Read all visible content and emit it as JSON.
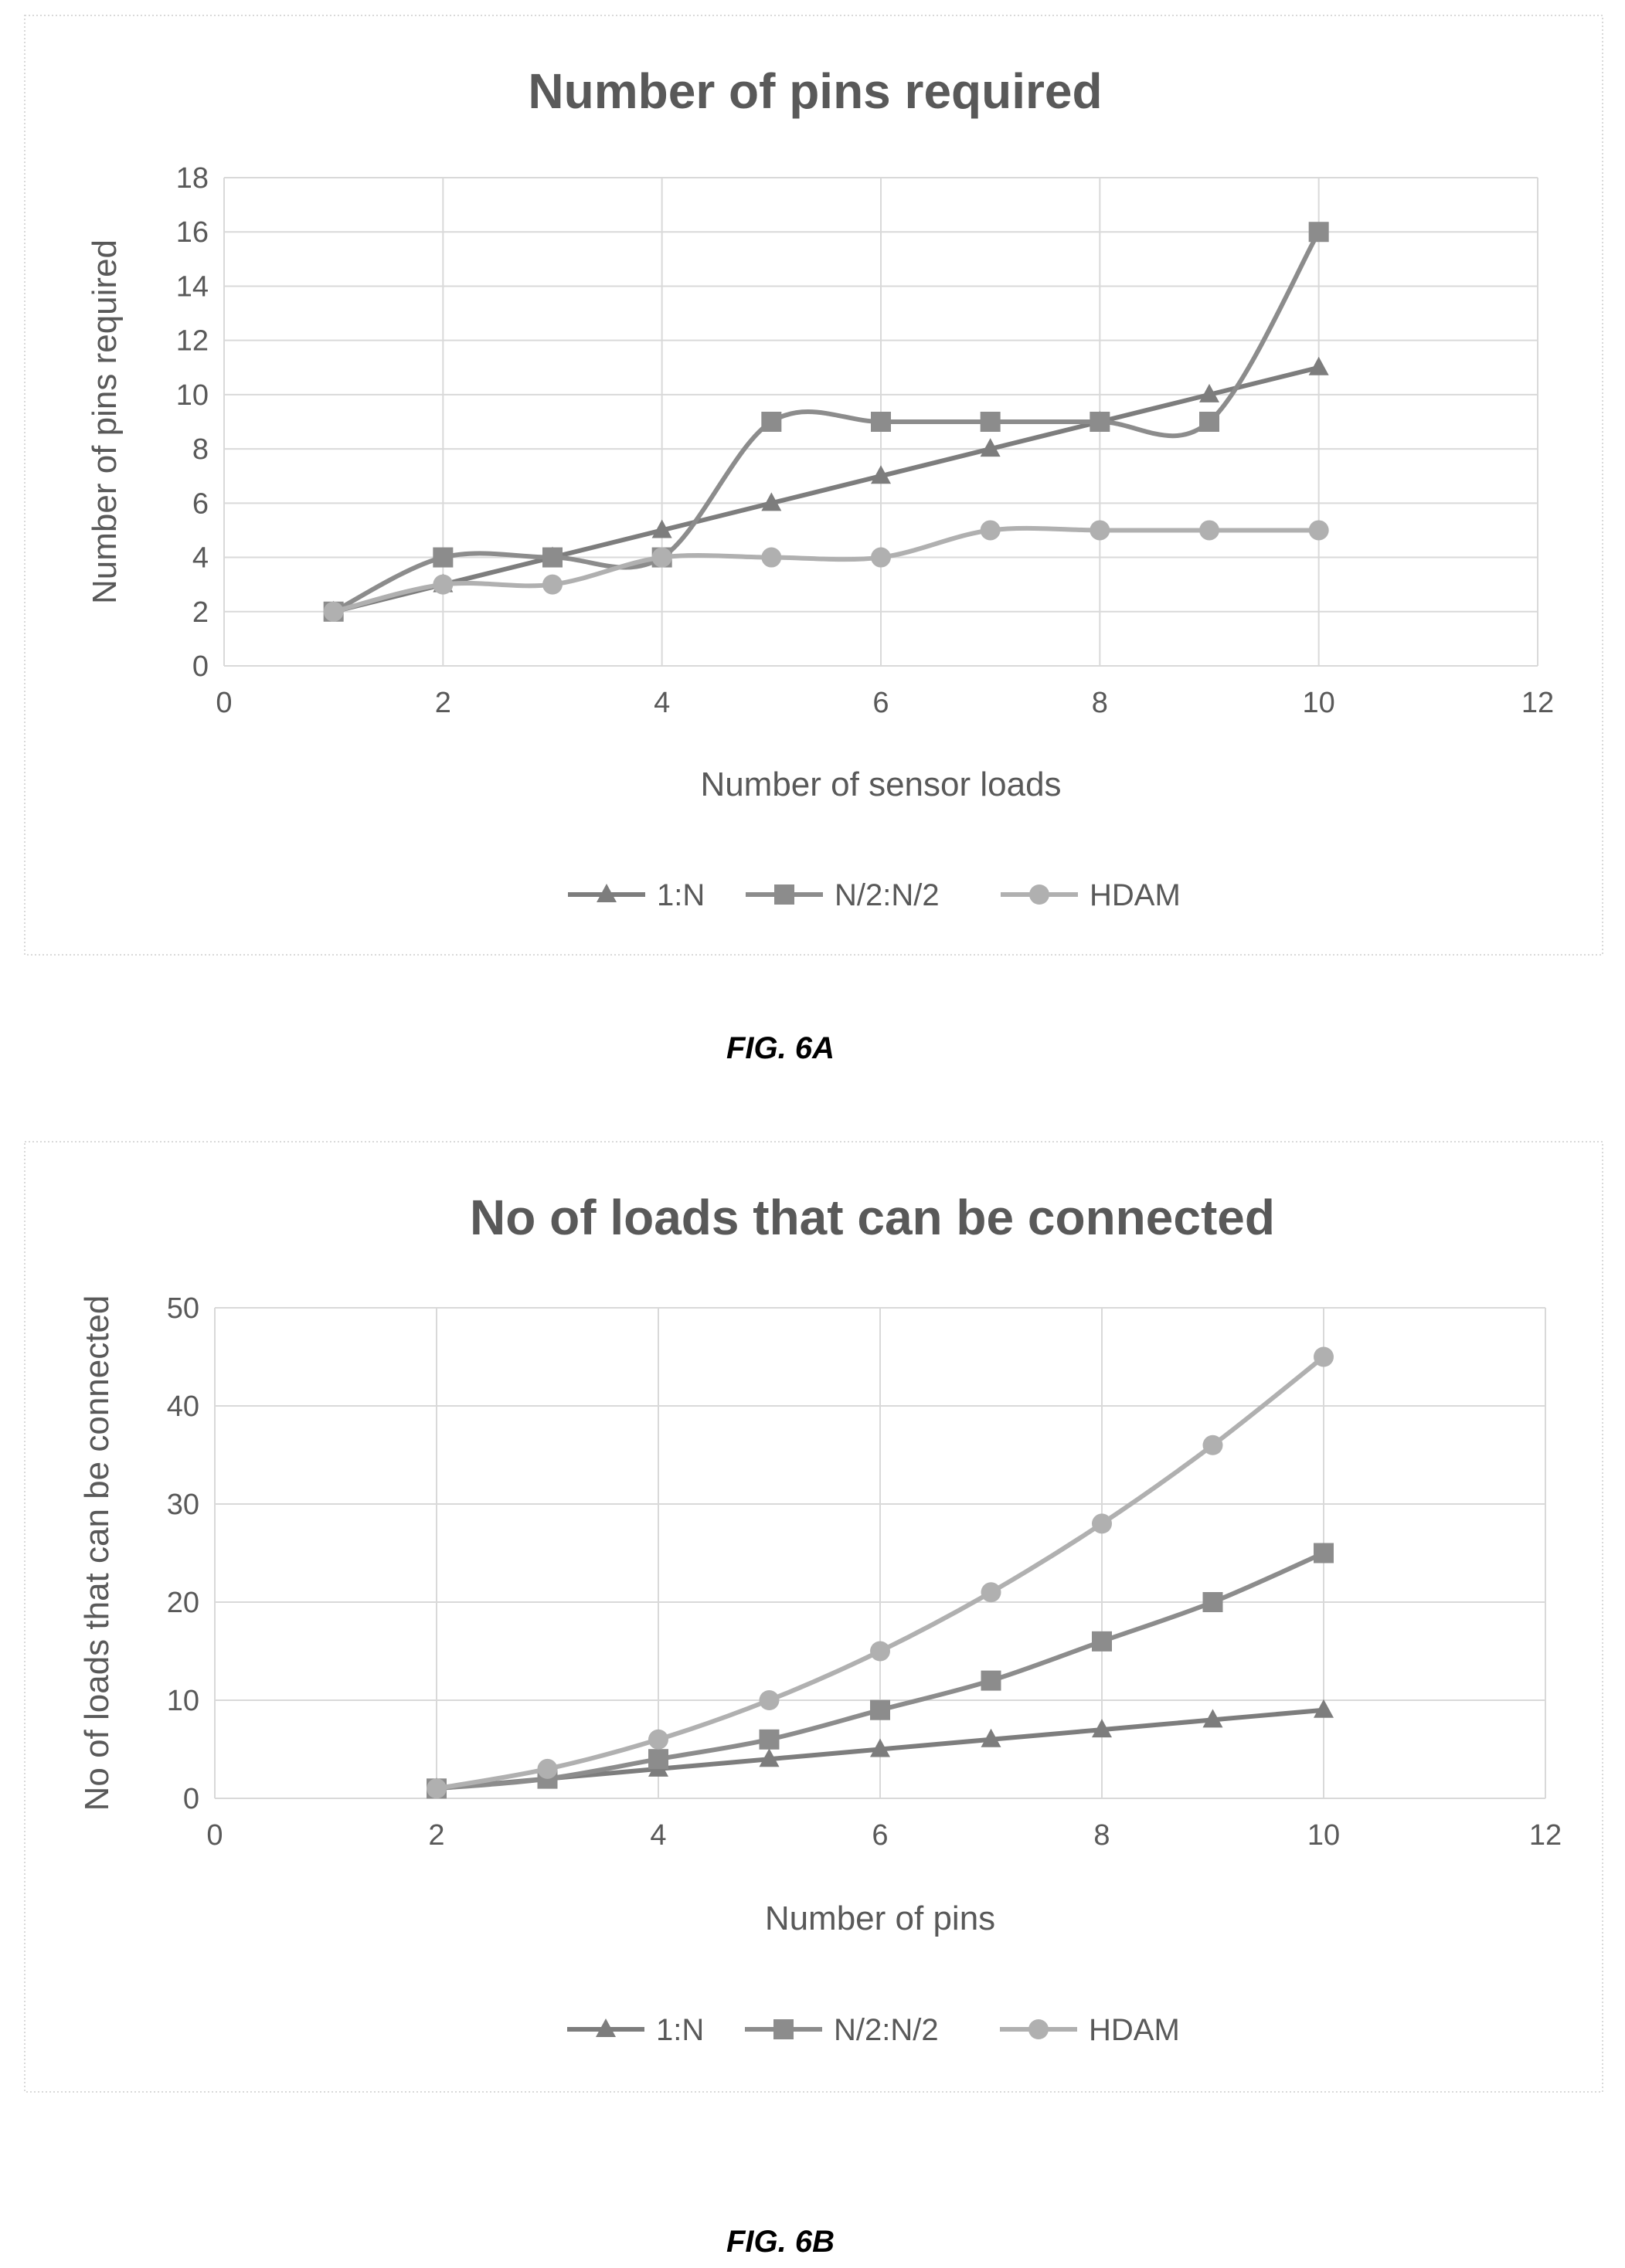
{
  "figures": [
    {
      "caption": "FIG. 6A",
      "chart_data": {
        "type": "line",
        "title": "Number of pins required",
        "xlabel": "Number of sensor loads",
        "ylabel": "Number of pins required",
        "xlim": [
          0,
          12
        ],
        "ylim": [
          0,
          18
        ],
        "xticks": [
          0,
          2,
          4,
          6,
          8,
          10,
          12
        ],
        "yticks": [
          0,
          2,
          4,
          6,
          8,
          10,
          12,
          14,
          16,
          18
        ],
        "grid": true,
        "smooth": true,
        "legend_position": "bottom",
        "series": [
          {
            "name": "1:N",
            "marker": "triangle",
            "color": "#7d7d7d",
            "x": [
              1,
              2,
              3,
              4,
              5,
              6,
              7,
              8,
              9,
              10
            ],
            "y": [
              2,
              3,
              4,
              5,
              6,
              7,
              8,
              9,
              10,
              11
            ]
          },
          {
            "name": "N/2:N/2",
            "marker": "square",
            "color": "#8c8c8c",
            "x": [
              1,
              2,
              3,
              4,
              5,
              6,
              7,
              8,
              9,
              10
            ],
            "y": [
              2,
              4,
              4,
              4,
              9,
              9,
              9,
              9,
              9,
              16
            ]
          },
          {
            "name": "HDAM",
            "marker": "circle",
            "color": "#b0b0b0",
            "x": [
              1,
              2,
              3,
              4,
              5,
              6,
              7,
              8,
              9,
              10
            ],
            "y": [
              2,
              3,
              3,
              4,
              4,
              4,
              5,
              5,
              5,
              5
            ]
          }
        ]
      }
    },
    {
      "caption": "FIG. 6B",
      "chart_data": {
        "type": "line",
        "title": "No of loads that can be connected",
        "xlabel": "Number of pins",
        "ylabel": "No of loads that can be connected",
        "xlim": [
          0,
          12
        ],
        "ylim": [
          0,
          50
        ],
        "xticks": [
          0,
          2,
          4,
          6,
          8,
          10,
          12
        ],
        "yticks": [
          0,
          10,
          20,
          30,
          40,
          50
        ],
        "grid": true,
        "smooth": true,
        "legend_position": "bottom",
        "series": [
          {
            "name": "1:N",
            "marker": "triangle",
            "color": "#7d7d7d",
            "x": [
              2,
              3,
              4,
              5,
              6,
              7,
              8,
              9,
              10
            ],
            "y": [
              1,
              2,
              3,
              4,
              5,
              6,
              7,
              8,
              9
            ]
          },
          {
            "name": "N/2:N/2",
            "marker": "square",
            "color": "#8c8c8c",
            "x": [
              2,
              3,
              4,
              5,
              6,
              7,
              8,
              9,
              10
            ],
            "y": [
              1,
              2,
              4,
              6,
              9,
              12,
              16,
              20,
              25
            ]
          },
          {
            "name": "HDAM",
            "marker": "circle",
            "color": "#b0b0b0",
            "x": [
              2,
              3,
              4,
              5,
              6,
              7,
              8,
              9,
              10
            ],
            "y": [
              1,
              3,
              6,
              10,
              15,
              21,
              28,
              36,
              45
            ]
          }
        ]
      }
    }
  ]
}
